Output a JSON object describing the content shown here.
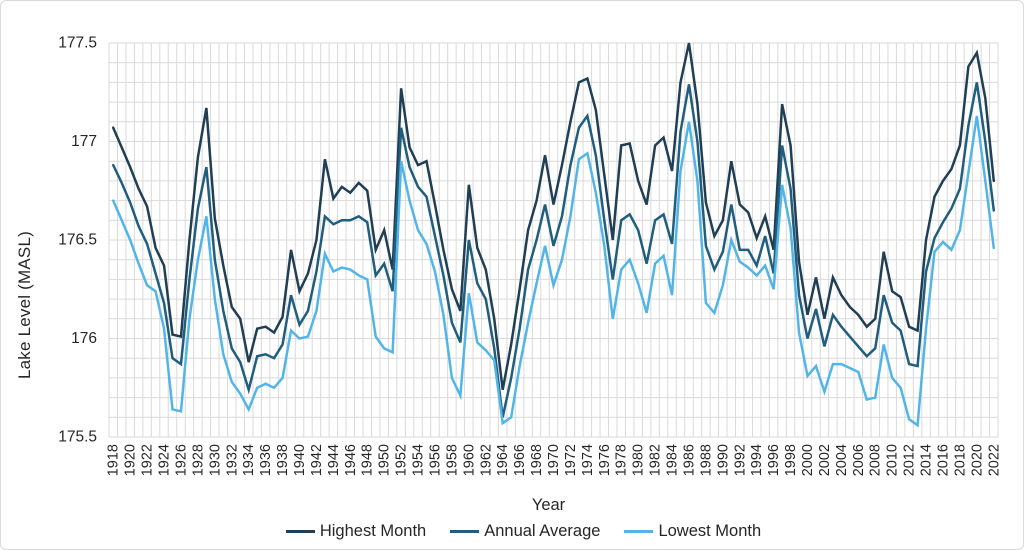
{
  "chart": {
    "y_axis_title": "Lake Level (MASL)",
    "x_axis_title": "Year",
    "y_tick_labels": [
      "177.5",
      "177",
      "176.5",
      "176",
      "175.5"
    ],
    "gridline_color": "#d9d9d9",
    "text_color": "#262626",
    "background_color": "#ffffff"
  },
  "chart_data": {
    "type": "line",
    "title": "",
    "xlabel": "Year",
    "ylabel": "Lake Level (MASL)",
    "ylim": [
      175.5,
      177.5
    ],
    "y_major_step": 0.5,
    "y_minor_step": 0.1,
    "x_tick_step": 2,
    "grid": "both",
    "legend_position": "bottom",
    "x": [
      1918,
      1919,
      1920,
      1921,
      1922,
      1923,
      1924,
      1925,
      1926,
      1927,
      1928,
      1929,
      1930,
      1931,
      1932,
      1933,
      1934,
      1935,
      1936,
      1937,
      1938,
      1939,
      1940,
      1941,
      1942,
      1943,
      1944,
      1945,
      1946,
      1947,
      1948,
      1949,
      1950,
      1951,
      1952,
      1953,
      1954,
      1955,
      1956,
      1957,
      1958,
      1959,
      1960,
      1961,
      1962,
      1963,
      1964,
      1965,
      1966,
      1967,
      1968,
      1969,
      1970,
      1971,
      1972,
      1973,
      1974,
      1975,
      1976,
      1977,
      1978,
      1979,
      1980,
      1981,
      1982,
      1983,
      1984,
      1985,
      1986,
      1987,
      1988,
      1989,
      1990,
      1991,
      1992,
      1993,
      1994,
      1995,
      1996,
      1997,
      1998,
      1999,
      2000,
      2001,
      2002,
      2003,
      2004,
      2005,
      2006,
      2007,
      2008,
      2009,
      2010,
      2011,
      2012,
      2013,
      2014,
      2015,
      2016,
      2017,
      2018,
      2019,
      2020,
      2021,
      2022
    ],
    "series": [
      {
        "name": "Highest Month",
        "color": "#203e54",
        "values": [
          177.07,
          176.97,
          176.87,
          176.76,
          176.67,
          176.46,
          176.37,
          176.02,
          176.01,
          176.5,
          176.92,
          177.17,
          176.61,
          176.37,
          176.16,
          176.1,
          175.88,
          176.05,
          176.06,
          176.03,
          176.11,
          176.45,
          176.24,
          176.33,
          176.5,
          176.91,
          176.71,
          176.77,
          176.74,
          176.79,
          176.75,
          176.45,
          176.55,
          176.35,
          177.27,
          176.97,
          176.88,
          176.9,
          176.68,
          176.45,
          176.25,
          176.14,
          176.78,
          176.46,
          176.35,
          176.1,
          175.74,
          175.97,
          176.25,
          176.55,
          176.7,
          176.93,
          176.68,
          176.88,
          177.1,
          177.3,
          177.32,
          177.16,
          176.83,
          176.5,
          176.98,
          176.99,
          176.8,
          176.68,
          176.98,
          177.02,
          176.85,
          177.3,
          177.5,
          177.19,
          176.69,
          176.52,
          176.6,
          176.9,
          176.68,
          176.64,
          176.51,
          176.62,
          176.45,
          177.19,
          176.98,
          176.39,
          176.12,
          176.31,
          176.1,
          176.31,
          176.22,
          176.16,
          176.12,
          176.06,
          176.1,
          176.44,
          176.24,
          176.21,
          176.06,
          176.04,
          176.5,
          176.72,
          176.8,
          176.86,
          176.98,
          177.38,
          177.45,
          177.22,
          176.8
        ]
      },
      {
        "name": "Annual Average",
        "color": "#205e7e",
        "values": [
          176.88,
          176.79,
          176.69,
          176.57,
          176.48,
          176.33,
          176.18,
          175.9,
          175.87,
          176.3,
          176.66,
          176.87,
          176.4,
          176.14,
          175.95,
          175.88,
          175.74,
          175.91,
          175.92,
          175.9,
          175.97,
          176.22,
          176.07,
          176.14,
          176.34,
          176.62,
          176.58,
          176.6,
          176.6,
          176.62,
          176.59,
          176.32,
          176.38,
          176.24,
          177.07,
          176.87,
          176.77,
          176.72,
          176.52,
          176.32,
          176.08,
          175.98,
          176.5,
          176.28,
          176.2,
          175.95,
          175.6,
          175.8,
          176.05,
          176.35,
          176.5,
          176.68,
          176.47,
          176.62,
          176.88,
          177.07,
          177.13,
          176.93,
          176.6,
          176.3,
          176.6,
          176.63,
          176.55,
          176.38,
          176.6,
          176.63,
          176.48,
          177.05,
          177.29,
          177.0,
          176.47,
          176.35,
          176.44,
          176.68,
          176.45,
          176.45,
          176.37,
          176.52,
          176.33,
          176.98,
          176.76,
          176.22,
          176.0,
          176.15,
          175.96,
          176.12,
          176.06,
          176.01,
          175.96,
          175.91,
          175.95,
          176.22,
          176.08,
          176.04,
          175.87,
          175.86,
          176.34,
          176.51,
          176.59,
          176.66,
          176.76,
          177.08,
          177.3,
          177.0,
          176.65
        ]
      },
      {
        "name": "Lowest Month",
        "color": "#52b5e7",
        "values": [
          176.7,
          176.6,
          176.5,
          176.38,
          176.27,
          176.24,
          176.05,
          175.64,
          175.63,
          176.1,
          176.4,
          176.62,
          176.2,
          175.92,
          175.78,
          175.72,
          175.64,
          175.75,
          175.77,
          175.75,
          175.8,
          176.04,
          176.0,
          176.01,
          176.14,
          176.43,
          176.34,
          176.36,
          176.35,
          176.32,
          176.3,
          176.01,
          175.95,
          175.93,
          176.9,
          176.7,
          176.55,
          176.48,
          176.34,
          176.12,
          175.8,
          175.71,
          176.23,
          175.98,
          175.94,
          175.89,
          175.57,
          175.6,
          175.86,
          176.08,
          176.28,
          176.47,
          176.27,
          176.4,
          176.62,
          176.91,
          176.94,
          176.74,
          176.47,
          176.1,
          176.35,
          176.4,
          176.28,
          176.13,
          176.38,
          176.42,
          176.22,
          176.85,
          177.1,
          176.8,
          176.18,
          176.13,
          176.27,
          176.5,
          176.39,
          176.36,
          176.32,
          176.37,
          176.25,
          176.78,
          176.56,
          176.03,
          175.81,
          175.86,
          175.73,
          175.87,
          175.87,
          175.85,
          175.83,
          175.69,
          175.7,
          175.97,
          175.8,
          175.75,
          175.59,
          175.56,
          176.05,
          176.44,
          176.49,
          176.45,
          176.55,
          176.84,
          177.13,
          176.8,
          176.46
        ]
      }
    ]
  }
}
